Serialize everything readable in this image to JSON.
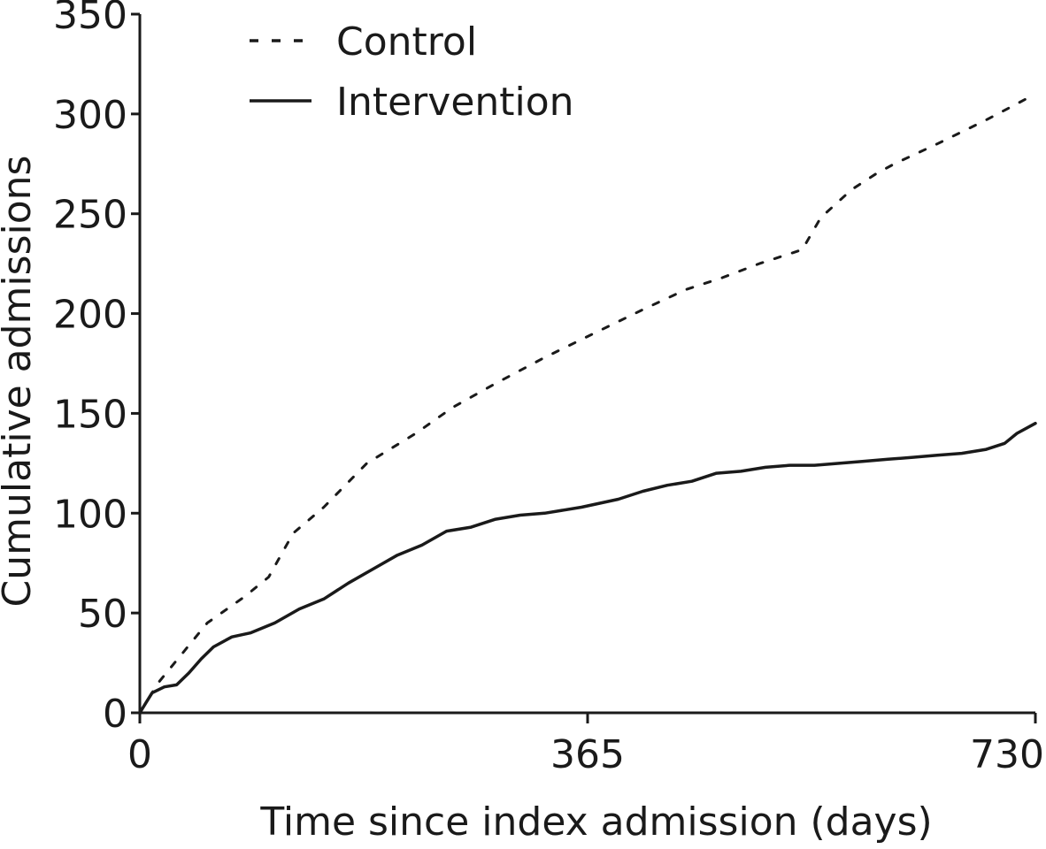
{
  "chart_data": {
    "type": "line",
    "title": "",
    "xlabel": "Time since index admission (days)",
    "ylabel": "Cumulative admissions",
    "xlim": [
      0,
      730
    ],
    "ylim": [
      0,
      350
    ],
    "x_ticks": [
      0,
      365,
      730
    ],
    "y_ticks": [
      0,
      50,
      100,
      150,
      200,
      250,
      300,
      350
    ],
    "grid": false,
    "legend_position": "top-left",
    "series": [
      {
        "name": "Control",
        "style": "dashed",
        "color": "#1a1a1a",
        "x": [
          0,
          15,
          35,
          55,
          85,
          105,
          125,
          150,
          185,
          225,
          255,
          290,
          330,
          370,
          410,
          445,
          475,
          505,
          540,
          555,
          580,
          600,
          615,
          650,
          690,
          730
        ],
        "y": [
          0,
          15,
          30,
          45,
          58,
          68,
          90,
          103,
          125,
          140,
          153,
          165,
          178,
          190,
          202,
          212,
          218,
          225,
          232,
          248,
          262,
          270,
          275,
          285,
          297,
          310
        ]
      },
      {
        "name": "Intervention",
        "style": "solid",
        "color": "#1a1a1a",
        "x": [
          0,
          5,
          10,
          20,
          30,
          40,
          50,
          60,
          75,
          90,
          110,
          130,
          150,
          170,
          190,
          210,
          230,
          250,
          270,
          290,
          310,
          330,
          360,
          390,
          410,
          430,
          450,
          470,
          490,
          510,
          530,
          550,
          570,
          590,
          610,
          630,
          650,
          670,
          690,
          705,
          715,
          730
        ],
        "y": [
          0,
          5,
          10,
          13,
          14,
          20,
          27,
          33,
          38,
          40,
          45,
          52,
          57,
          65,
          72,
          79,
          84,
          91,
          93,
          97,
          99,
          100,
          103,
          107,
          111,
          114,
          116,
          120,
          121,
          123,
          124,
          124,
          125,
          126,
          127,
          128,
          129,
          130,
          132,
          135,
          140,
          145
        ]
      }
    ]
  }
}
